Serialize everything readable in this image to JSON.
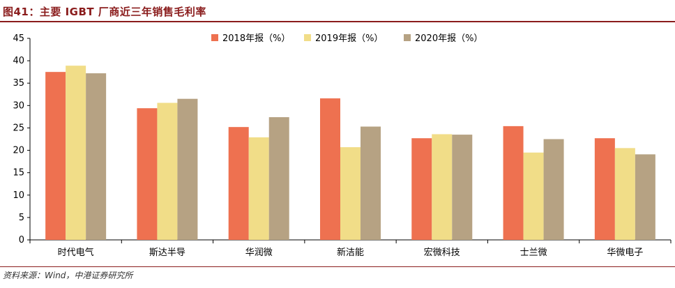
{
  "title": "图41：主要 IGBT 厂商近三年销售毛利率",
  "source": "资料来源：Wind，中港证券研究所",
  "colors": {
    "title": "#8a1c1c",
    "axis": "#000000",
    "series": [
      "#ee7150",
      "#f1dd88",
      "#b6a283"
    ]
  },
  "chart_data": {
    "type": "bar",
    "title": "",
    "xlabel": "",
    "ylabel": "",
    "categories": [
      "时代电气",
      "斯达半导",
      "华润微",
      "新洁能",
      "宏微科技",
      "士兰微",
      "华微电子"
    ],
    "series": [
      {
        "name": "2018年报（%）",
        "values": [
          37.5,
          29.4,
          25.2,
          31.6,
          22.7,
          25.4,
          22.7
        ]
      },
      {
        "name": "2019年报（%）",
        "values": [
          38.9,
          30.6,
          22.9,
          20.7,
          23.6,
          19.5,
          20.5
        ]
      },
      {
        "name": "2020年报（%）",
        "values": [
          37.2,
          31.5,
          27.4,
          25.3,
          23.5,
          22.5,
          19.1
        ]
      }
    ],
    "ylim": [
      0,
      45
    ],
    "yticks": [
      0,
      5,
      10,
      15,
      20,
      25,
      30,
      35,
      40,
      45
    ],
    "grid": false,
    "legend": "top-right"
  }
}
